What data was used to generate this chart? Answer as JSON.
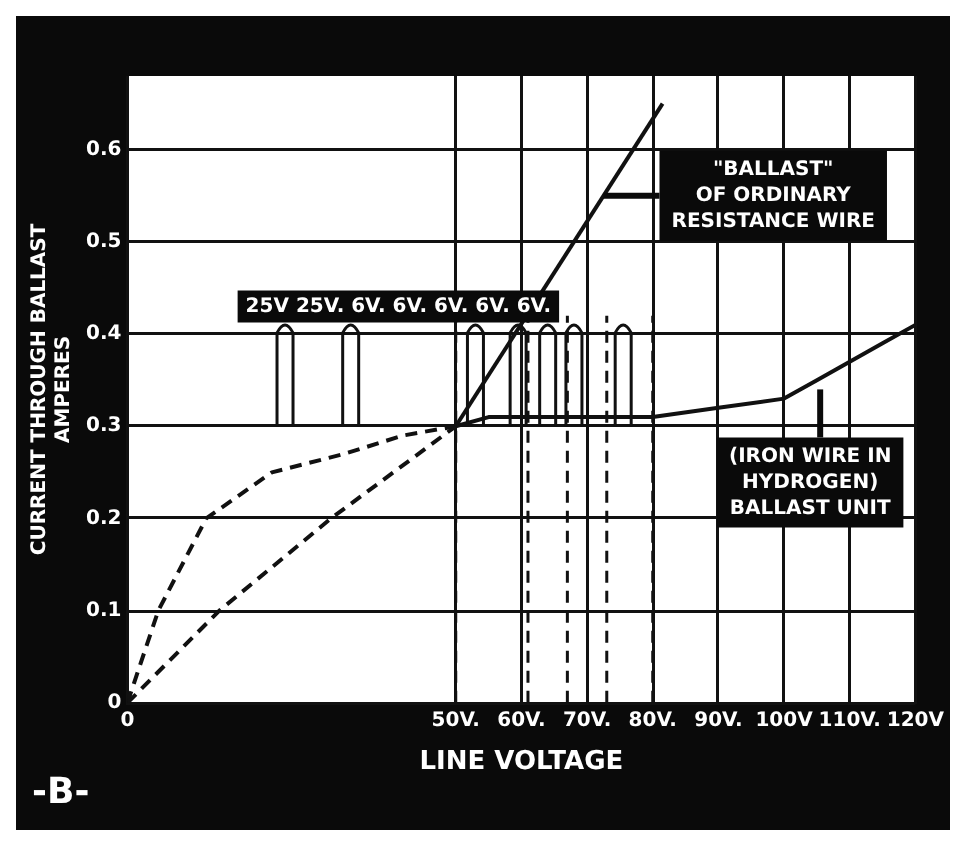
{
  "chart_data": {
    "type": "line",
    "xlabel": "LINE VOLTAGE",
    "ylabel": "CURRENT THROUGH BALLAST\nAMPERES",
    "xlim": [
      0,
      120
    ],
    "ylim": [
      0,
      0.68
    ],
    "xticks": [
      0,
      {
        "value": 50,
        "label": "50V."
      },
      {
        "value": 60,
        "label": "60V."
      },
      {
        "value": 70,
        "label": "70V."
      },
      {
        "value": 80,
        "label": "80V."
      },
      {
        "value": 90,
        "label": "90V."
      },
      {
        "value": 100,
        "label": "100V"
      },
      {
        "value": 110,
        "label": "110V."
      },
      {
        "value": 120,
        "label": "120V"
      }
    ],
    "yticks": [
      0,
      0.1,
      0.2,
      0.3,
      0.4,
      0.5,
      0.6
    ],
    "grid": true,
    "legend": false,
    "marker": "none",
    "series": [
      {
        "color": "#111111",
        "line_style": "dashed",
        "x": [
          0,
          14,
          31,
          50
        ],
        "values": [
          0,
          0.1,
          0.2,
          0.3
        ]
      },
      {
        "color": "#111111",
        "line_style": "solid",
        "x": [
          50,
          81.5
        ],
        "values": [
          0.3,
          0.65
        ]
      },
      {
        "color": "#111111",
        "line_style": "dashed",
        "x": [
          0,
          4.7,
          12,
          22,
          33,
          42,
          50
        ],
        "values": [
          0,
          0.1,
          0.2,
          0.25,
          0.27,
          0.29,
          0.3
        ]
      },
      {
        "color": "#111111",
        "line_style": "solid",
        "x": [
          50,
          55,
          60,
          70,
          80,
          90,
          100,
          105,
          110,
          115,
          120
        ],
        "values": [
          0.3,
          0.31,
          0.31,
          0.31,
          0.31,
          0.32,
          0.33,
          0.35,
          0.37,
          0.39,
          0.41
        ]
      }
    ],
    "ref_lines": [
      {
        "axis": "x",
        "value": 50,
        "line_style": "dashed"
      },
      {
        "axis": "x",
        "value": 61,
        "line_style": "dashed"
      },
      {
        "axis": "x",
        "value": 67,
        "line_style": "dashed"
      },
      {
        "axis": "x",
        "value": 73,
        "line_style": "dashed"
      },
      {
        "axis": "x",
        "value": 80,
        "line_style": "dashed"
      }
    ],
    "annotations": [
      "25V 25V. 6V. 6V. 6V. 6V. 6V.",
      "-B-",
      {
        "text": "\"BALLAST\"\nOF ORDINARY\nRESISTANCE WIRE",
        "x": 72.5,
        "y": 0.55
      },
      {
        "text": "(IRON WIRE IN\nHYDROGEN)\nBALLAST UNIT",
        "x": 105.5,
        "y": 0.34
      }
    ]
  }
}
